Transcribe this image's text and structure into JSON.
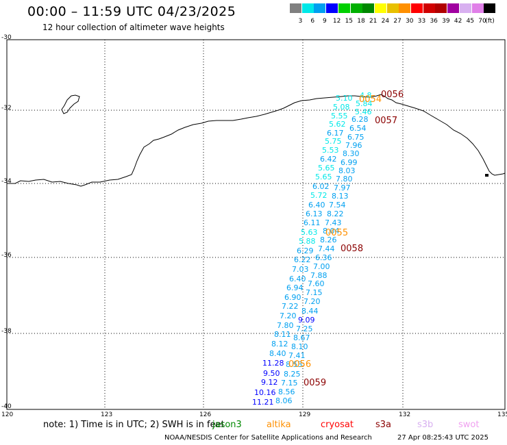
{
  "title": "00:00 – 11:59 UTC 04/23/2025",
  "subtitle": "12 hour collection of altimeter wave heights",
  "colorbar": {
    "unit": "(ft)",
    "colors": [
      "#808080",
      "#00e8e8",
      "#00a0f0",
      "#0000ff",
      "#00d000",
      "#00b000",
      "#008800",
      "#ffff00",
      "#e8c000",
      "#ff9000",
      "#ff0000",
      "#d00000",
      "#b00000",
      "#a000a0",
      "#d8b0f0",
      "#e080e8",
      "#000000"
    ],
    "labels": [
      "3",
      "6",
      "9",
      "12",
      "15",
      "18",
      "21",
      "24",
      "27",
      "30",
      "33",
      "36",
      "39",
      "42",
      "45",
      "70"
    ]
  },
  "axes": {
    "lat_labels": [
      "-30",
      "-32",
      "-34",
      "-36",
      "-38",
      "-40"
    ],
    "lon_labels": [
      "120",
      "123",
      "126",
      "129",
      "132",
      "135"
    ]
  },
  "track_times": [
    {
      "text": "0056",
      "color": "#8b0000"
    },
    {
      "text": "0054",
      "color": "#ff9000"
    },
    {
      "text": "0057",
      "color": "#8b0000"
    },
    {
      "text": "0055",
      "color": "#ff9000"
    },
    {
      "text": "0058",
      "color": "#8b0000"
    },
    {
      "text": "0056",
      "color": "#ff9000"
    },
    {
      "text": "0059",
      "color": "#8b0000"
    }
  ],
  "wave_heights": [
    {
      "v": "4.8",
      "c": "#00e8e8"
    },
    {
      "v": "5.10",
      "c": "#00e8e8"
    },
    {
      "v": "5.84",
      "c": "#00e8e8"
    },
    {
      "v": "5.08",
      "c": "#00e8e8"
    },
    {
      "v": "5.46",
      "c": "#00e8e8"
    },
    {
      "v": "5.55",
      "c": "#00e8e8"
    },
    {
      "v": "6.28",
      "c": "#00a0f0"
    },
    {
      "v": "5.62",
      "c": "#00e8e8"
    },
    {
      "v": "6.54",
      "c": "#00a0f0"
    },
    {
      "v": "6.17",
      "c": "#00a0f0"
    },
    {
      "v": "6.75",
      "c": "#00a0f0"
    },
    {
      "v": "5.75",
      "c": "#00e8e8"
    },
    {
      "v": "7.96",
      "c": "#00a0f0"
    },
    {
      "v": "5.53",
      "c": "#00e8e8"
    },
    {
      "v": "8.30",
      "c": "#00a0f0"
    },
    {
      "v": "6.42",
      "c": "#00a0f0"
    },
    {
      "v": "6.99",
      "c": "#00a0f0"
    },
    {
      "v": "5.65",
      "c": "#00e8e8"
    },
    {
      "v": "8.03",
      "c": "#00a0f0"
    },
    {
      "v": "5.65",
      "c": "#00e8e8"
    },
    {
      "v": "7.80",
      "c": "#00a0f0"
    },
    {
      "v": "6.02",
      "c": "#00a0f0"
    },
    {
      "v": "7.97",
      "c": "#00a0f0"
    },
    {
      "v": "5.72",
      "c": "#00e8e8"
    },
    {
      "v": "8.13",
      "c": "#00a0f0"
    },
    {
      "v": "6.40",
      "c": "#00a0f0"
    },
    {
      "v": "7.54",
      "c": "#00a0f0"
    },
    {
      "v": "6.13",
      "c": "#00a0f0"
    },
    {
      "v": "8.22",
      "c": "#00a0f0"
    },
    {
      "v": "6.11",
      "c": "#00a0f0"
    },
    {
      "v": "7.43",
      "c": "#00a0f0"
    },
    {
      "v": "5.63",
      "c": "#00e8e8"
    },
    {
      "v": "8.04",
      "c": "#00a0f0"
    },
    {
      "v": "5.88",
      "c": "#00e8e8"
    },
    {
      "v": "8.26",
      "c": "#00a0f0"
    },
    {
      "v": "6.29",
      "c": "#00a0f0"
    },
    {
      "v": "7.44",
      "c": "#00a0f0"
    },
    {
      "v": "6.22",
      "c": "#00a0f0"
    },
    {
      "v": "6.36",
      "c": "#00a0f0"
    },
    {
      "v": "7.03",
      "c": "#00a0f0"
    },
    {
      "v": "7.00",
      "c": "#00a0f0"
    },
    {
      "v": "6.40",
      "c": "#00a0f0"
    },
    {
      "v": "7.88",
      "c": "#00a0f0"
    },
    {
      "v": "6.94",
      "c": "#00a0f0"
    },
    {
      "v": "7.60",
      "c": "#00a0f0"
    },
    {
      "v": "6.90",
      "c": "#00a0f0"
    },
    {
      "v": "7.15",
      "c": "#00a0f0"
    },
    {
      "v": "7.22",
      "c": "#00a0f0"
    },
    {
      "v": "7.20",
      "c": "#00a0f0"
    },
    {
      "v": "7.20",
      "c": "#00a0f0"
    },
    {
      "v": "8.44",
      "c": "#00a0f0"
    },
    {
      "v": "9.09",
      "c": "#0000ff"
    },
    {
      "v": "7.80",
      "c": "#00a0f0"
    },
    {
      "v": "7.25",
      "c": "#00a0f0"
    },
    {
      "v": "8.11",
      "c": "#00a0f0"
    },
    {
      "v": "8.67",
      "c": "#00a0f0"
    },
    {
      "v": "8.12",
      "c": "#00a0f0"
    },
    {
      "v": "8.10",
      "c": "#00a0f0"
    },
    {
      "v": "8.40",
      "c": "#00a0f0"
    },
    {
      "v": "7.41",
      "c": "#00a0f0"
    },
    {
      "v": "11.28",
      "c": "#0000ff"
    },
    {
      "v": "8.53",
      "c": "#00a0f0"
    },
    {
      "v": "9.50",
      "c": "#0000ff"
    },
    {
      "v": "8.25",
      "c": "#00a0f0"
    },
    {
      "v": "9.12",
      "c": "#0000ff"
    },
    {
      "v": "7.15",
      "c": "#00a0f0"
    },
    {
      "v": "10.16",
      "c": "#0000ff"
    },
    {
      "v": "8.56",
      "c": "#00a0f0"
    },
    {
      "v": "11.21",
      "c": "#0000ff"
    },
    {
      "v": "8.06",
      "c": "#00a0f0"
    }
  ],
  "footer": {
    "note": "note:  1) Time is in UTC; 2) SWH is in feet",
    "satellites": [
      {
        "name": "jason3",
        "color": "#008800"
      },
      {
        "name": "altika",
        "color": "#ff9000"
      },
      {
        "name": "cryosat",
        "color": "#ff0000"
      },
      {
        "name": "s3a",
        "color": "#8b0000"
      },
      {
        "name": "s3b",
        "color": "#d8b0f0"
      },
      {
        "name": "swot",
        "color": "#f0a0f0"
      }
    ],
    "credit": "NOAA/NESDIS Center for Satellite Applications and Research",
    "timestamp": "27 Apr 08:25:43 UTC 2025"
  }
}
